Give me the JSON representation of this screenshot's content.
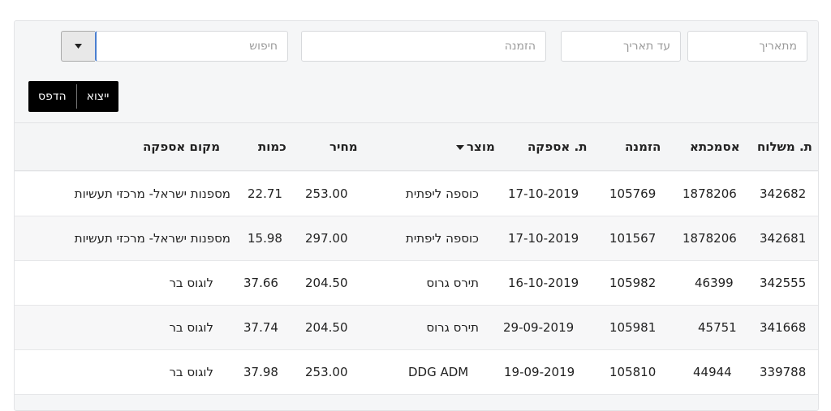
{
  "filters": {
    "from_date_placeholder": "מתאריך",
    "to_date_placeholder": "עד תאריך",
    "order_placeholder": "הזמנה",
    "search_placeholder": "חיפוש",
    "search_value": ""
  },
  "actions": {
    "export_label": "ייצוא",
    "print_label": "הדפס"
  },
  "table": {
    "columns": {
      "shipment_date": "ת. משלוח",
      "warehouse": "אסמכתא",
      "order": "הזמנה",
      "supply_date": "ת. אספקה",
      "product": "מוצר",
      "price": "מחיר",
      "quantity": "כמות",
      "supply_location": "מקום אספקה"
    },
    "rows": [
      {
        "shipment": "342682",
        "ref": "1878206",
        "order": "105769",
        "supply_date": "17-10-2019",
        "product": "כוספה ליפתית",
        "price": "253.00",
        "qty": "22.71",
        "location": "מספנות ישראל- מרכזי תעשיות"
      },
      {
        "shipment": "342681",
        "ref": "1878206",
        "order": "101567",
        "supply_date": "17-10-2019",
        "product": "כוספה ליפתית",
        "price": "297.00",
        "qty": "15.98",
        "location": "מספנות ישראל- מרכזי תעשיות"
      },
      {
        "shipment": "342555",
        "ref": "46399",
        "order": "105982",
        "supply_date": "16-10-2019",
        "product": "תירס גרוס",
        "price": "204.50",
        "qty": "37.66",
        "location": "לוגוס בר"
      },
      {
        "shipment": "341668",
        "ref": "45751",
        "order": "105981",
        "supply_date": "29-09-2019",
        "product": "תירס גרוס",
        "price": "204.50",
        "qty": "37.74",
        "location": "לוגוס בר"
      },
      {
        "shipment": "339788",
        "ref": "44944",
        "order": "105810",
        "supply_date": "19-09-2019",
        "product": "DDG ADM",
        "price": "253.00",
        "qty": "37.98",
        "location": "לוגוס בר"
      }
    ]
  },
  "icons": {
    "dropdown": "chevron-down-icon",
    "sort": "sort-desc-icon"
  }
}
